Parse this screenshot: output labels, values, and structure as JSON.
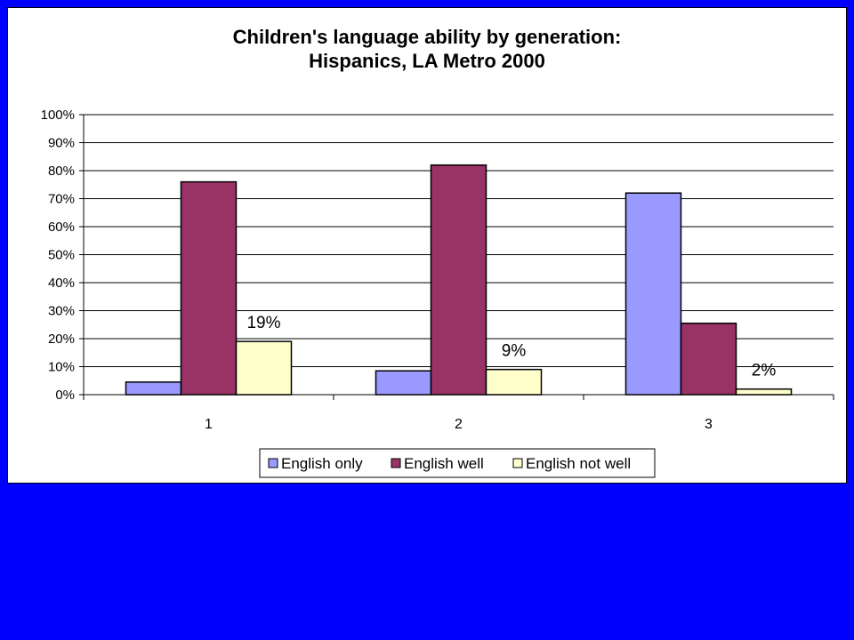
{
  "chart_data": {
    "type": "bar",
    "title": [
      "Children's language ability by generation:",
      "Hispanics, LA Metro 2000"
    ],
    "categories": [
      "1",
      "2",
      "3"
    ],
    "series": [
      {
        "name": "English only",
        "values": [
          4.5,
          8.5,
          72
        ],
        "color": "#9999ff"
      },
      {
        "name": "English well",
        "values": [
          76,
          82,
          25.5
        ],
        "color": "#993366"
      },
      {
        "name": "English not well",
        "values": [
          19,
          9,
          2
        ],
        "color": "#ffffcc"
      }
    ],
    "data_labels": [
      {
        "series": 2,
        "category": 0,
        "text": "19%"
      },
      {
        "series": 2,
        "category": 1,
        "text": "9%"
      },
      {
        "series": 2,
        "category": 2,
        "text": "2%"
      }
    ],
    "ylim": [
      0,
      100
    ],
    "yticks": [
      "0%",
      "10%",
      "20%",
      "30%",
      "40%",
      "50%",
      "60%",
      "70%",
      "80%",
      "90%",
      "100%"
    ],
    "grid": true,
    "legend_position": "bottom",
    "xlabel": "",
    "ylabel": ""
  }
}
